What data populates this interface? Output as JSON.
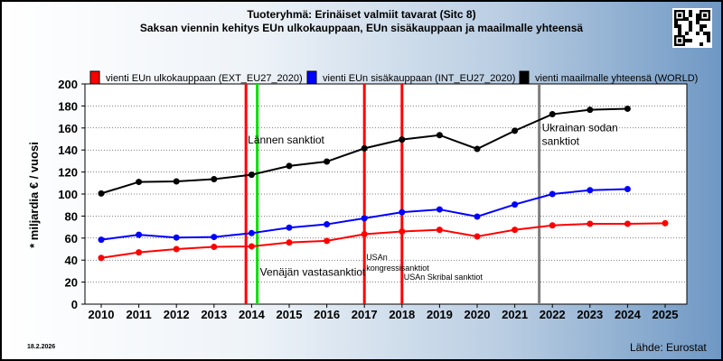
{
  "colors": {
    "eu_external": "#ff0000",
    "eu_internal": "#0000ff",
    "world": "#000000",
    "event_red": "#ff0000",
    "event_green": "#00e000",
    "event_gray": "#7f7f7f"
  },
  "chart_data": {
    "type": "line",
    "title": "Tuoteryhmä: Erinäiset valmiit tavarat (Sitc 8)",
    "subtitle": "Saksan viennin kehitys EUn ulkokauppaan, EUn sisäkauppaan ja maailmalle yhteensä",
    "ylabel": "* miljardia € / vuosi",
    "xlabel": "",
    "ylim": [
      0,
      200
    ],
    "y_ticks": [
      0,
      20,
      40,
      60,
      80,
      100,
      120,
      140,
      160,
      180,
      200
    ],
    "grid": true,
    "legend_position": "top",
    "x": [
      "2010",
      "2011",
      "2012",
      "2013",
      "2014",
      "2015",
      "2016",
      "2017",
      "2018",
      "2019",
      "2020",
      "2021",
      "2022",
      "2023",
      "2024",
      "2025"
    ],
    "series": [
      {
        "name": "vienti EUn ulkokauppaan (EXT_EU27_2020)",
        "color_key": "eu_external",
        "values": [
          42,
          47,
          50,
          52,
          52.5,
          56,
          57.5,
          63.5,
          66,
          67.5,
          61.5,
          67.5,
          71.5,
          73,
          73,
          73.5
        ]
      },
      {
        "name": "vienti EUn sisäkauppaan (INT_EU27_2020)",
        "color_key": "eu_internal",
        "values": [
          58.5,
          63,
          60.5,
          61,
          64.5,
          69.5,
          72.5,
          78,
          83.5,
          86,
          79.5,
          90.5,
          100,
          103.5,
          104.5,
          null
        ]
      },
      {
        "name": "vienti maailmalle yhteensä (WORLD)",
        "color_key": "world",
        "values": [
          100.5,
          111,
          111.5,
          113.5,
          117.5,
          125.5,
          129.5,
          141.5,
          149.5,
          153.5,
          141,
          157.5,
          172.5,
          176.5,
          177.5,
          null
        ]
      }
    ],
    "events": [
      {
        "x": 2013.85,
        "color_key": "event_red",
        "label": "Lännen sanktiot",
        "label_style": "big",
        "label_y": 146
      },
      {
        "x": 2014.15,
        "color_key": "event_green",
        "label": "Venäjän vastasanktiot",
        "label_style": "big",
        "label_y": 26
      },
      {
        "x": 2017.0,
        "color_key": "event_red",
        "label": "USAn kongressisanktiot",
        "label_style": "small-two-line",
        "label_y": 40
      },
      {
        "x": 2018.0,
        "color_key": "event_red",
        "label": "USAn Skribal sanktiot",
        "label_style": "small",
        "label_y": 22
      },
      {
        "x": 2021.65,
        "color_key": "event_gray",
        "label": "Ukrainan sodan sanktiot",
        "label_style": "big-two-line",
        "label_y": 157
      }
    ]
  },
  "footer": {
    "date": "18.2.2026",
    "source": "Lähde: Eurostat"
  },
  "qr_icon": "qr-code-icon"
}
